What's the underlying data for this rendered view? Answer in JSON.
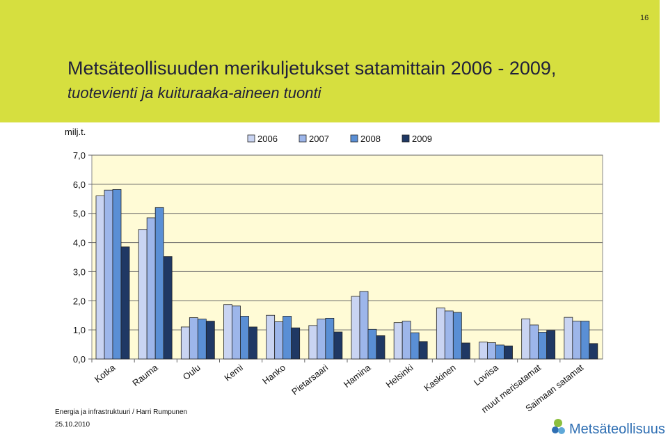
{
  "page_number": "16",
  "title": "Metsäteollisuuden merikuljetukset satamittain 2006 - 2009,",
  "subtitle": "tuotevienti ja kuituraaka-aineen tuonti",
  "footer": {
    "org": "Energia ja infrastruktuuri / Harri Rumpunen",
    "date": "25.10.2010"
  },
  "logo": {
    "text": "Metsäteollisuus",
    "color": "#2f6fb3"
  },
  "colors": {
    "band": "#d6df3f",
    "plot_bg": "#fffbd6",
    "s2006": "#c9d4f2",
    "s2007": "#9db6ea",
    "s2008": "#5a8fd5",
    "s2009": "#1f3864"
  },
  "chart_data": {
    "type": "bar",
    "ylabel": "milj.t.",
    "ylim": [
      0,
      7
    ],
    "yticks": [
      "0,0",
      "1,0",
      "2,0",
      "3,0",
      "4,0",
      "5,0",
      "6,0",
      "7,0"
    ],
    "grid": true,
    "legend_position": "top",
    "categories": [
      "Kotka",
      "Rauma",
      "Oulu",
      "Kemi",
      "Hanko",
      "Pietarsaari",
      "Hamina",
      "Helsinki",
      "Kaskinen",
      "Loviisa",
      "muut merisatamat",
      "Saimaan satamat"
    ],
    "series": [
      {
        "name": "2006",
        "color": "#c9d4f2",
        "values": [
          5.6,
          4.45,
          1.1,
          1.87,
          1.5,
          1.15,
          2.15,
          1.25,
          1.75,
          0.58,
          1.38,
          1.43
        ]
      },
      {
        "name": "2007",
        "color": "#9db6ea",
        "values": [
          5.8,
          4.85,
          1.42,
          1.82,
          1.28,
          1.37,
          2.32,
          1.3,
          1.65,
          0.56,
          1.17,
          1.3
        ]
      },
      {
        "name": "2008",
        "color": "#5a8fd5",
        "values": [
          5.82,
          5.2,
          1.37,
          1.47,
          1.47,
          1.4,
          1.02,
          0.9,
          1.6,
          0.48,
          0.92,
          1.3
        ]
      },
      {
        "name": "2009",
        "color": "#1f3864",
        "values": [
          3.85,
          3.52,
          1.3,
          1.1,
          1.07,
          0.93,
          0.8,
          0.6,
          0.55,
          0.45,
          0.98,
          0.53
        ]
      }
    ]
  }
}
